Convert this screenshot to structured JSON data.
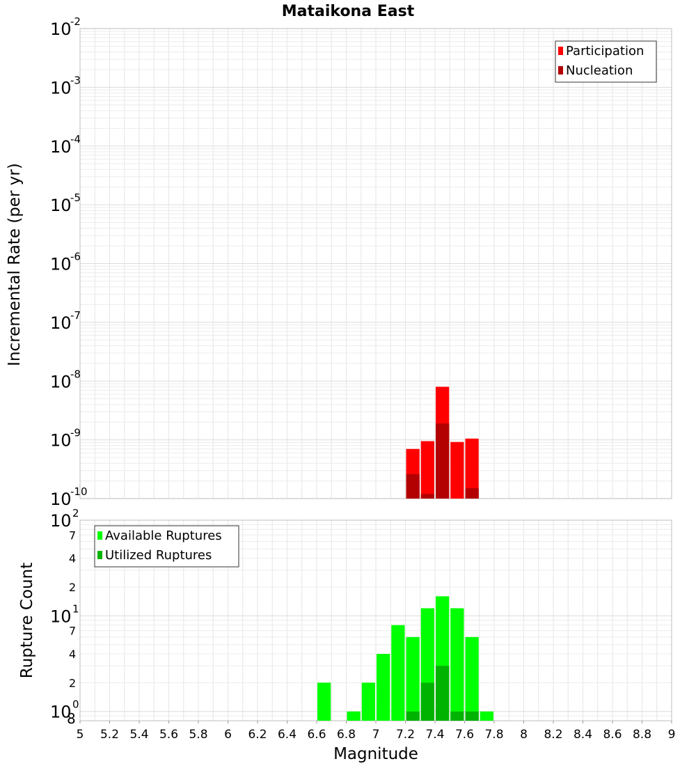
{
  "chart_data": [
    {
      "type": "bar",
      "title": "Mataikona East",
      "xlabel": "",
      "ylabel": "Incremental Rate (per yr)",
      "y_scale": "log",
      "ylim": [
        1e-10,
        0.01
      ],
      "xlim": [
        5,
        9
      ],
      "grid": true,
      "legend_position": "top-right",
      "y_ticks": [
        {
          "base": "10",
          "exp": "-10",
          "value": 1e-10
        },
        {
          "base": "10",
          "exp": "-9",
          "value": 1e-09
        },
        {
          "base": "10",
          "exp": "-8",
          "value": 1e-08
        },
        {
          "base": "10",
          "exp": "-7",
          "value": 1e-07
        },
        {
          "base": "10",
          "exp": "-6",
          "value": 1e-06
        },
        {
          "base": "10",
          "exp": "-5",
          "value": 1e-05
        },
        {
          "base": "10",
          "exp": "-4",
          "value": 0.0001
        },
        {
          "base": "10",
          "exp": "-3",
          "value": 0.001
        },
        {
          "base": "10",
          "exp": "-2",
          "value": 0.01
        }
      ],
      "x": [
        7.25,
        7.35,
        7.45,
        7.55,
        7.65
      ],
      "series": [
        {
          "name": "Participation",
          "color": "#ff0000",
          "values": [
            7e-10,
            9.5e-10,
            8e-09,
            9.2e-10,
            1.05e-09
          ]
        },
        {
          "name": "Nucleation",
          "color": "#b30000",
          "values": [
            2.6e-10,
            1.2e-10,
            1.9e-09,
            1e-10,
            1.5e-10
          ]
        }
      ]
    },
    {
      "type": "bar",
      "xlabel": "Magnitude",
      "ylabel": "Rupture Count",
      "y_scale": "log",
      "ylim": [
        0.8,
        100
      ],
      "xlim": [
        5,
        9
      ],
      "grid": true,
      "legend_position": "top-left",
      "x_ticks": [
        "5",
        "5.2",
        "5.4",
        "5.6",
        "5.8",
        "6",
        "6.2",
        "6.4",
        "6.6",
        "6.8",
        "7",
        "7.2",
        "7.4",
        "7.6",
        "7.8",
        "8",
        "8.2",
        "8.4",
        "8.6",
        "8.8",
        "9"
      ],
      "y_ticks": [
        {
          "base": "10",
          "exp": "0",
          "value": 1
        },
        {
          "base": "10",
          "exp": "1",
          "value": 10
        },
        {
          "base": "10",
          "exp": "2",
          "value": 100
        }
      ],
      "y_minor_labels": [
        {
          "label": "8",
          "value": 0.8
        },
        {
          "label": "2",
          "value": 2
        },
        {
          "label": "4",
          "value": 4
        },
        {
          "label": "7",
          "value": 7
        },
        {
          "label": "2",
          "value": 20
        },
        {
          "label": "4",
          "value": 40
        },
        {
          "label": "7",
          "value": 70
        }
      ],
      "x": [
        6.65,
        6.85,
        6.95,
        7.05,
        7.15,
        7.25,
        7.35,
        7.45,
        7.55,
        7.65,
        7.75
      ],
      "series": [
        {
          "name": "Available Ruptures",
          "color": "#00ff00",
          "values": [
            2,
            1,
            2,
            4,
            8,
            6,
            12,
            16,
            12,
            6,
            1
          ]
        },
        {
          "name": "Utilized Ruptures",
          "color": "#00b300",
          "values": [
            0,
            0,
            0,
            0,
            0,
            1,
            2,
            3,
            1,
            1,
            0
          ]
        }
      ]
    }
  ]
}
